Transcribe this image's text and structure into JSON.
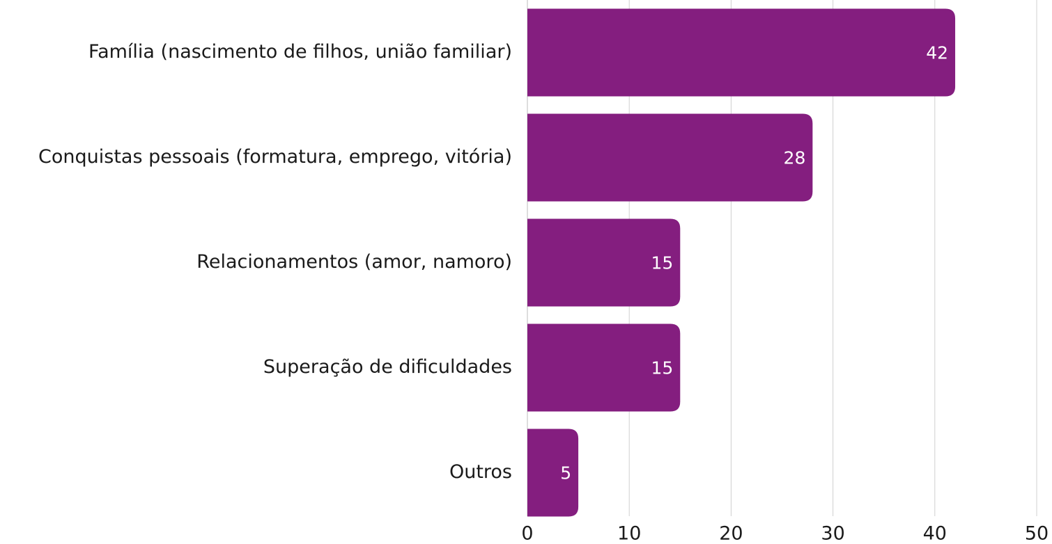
{
  "chart_data": {
    "type": "bar",
    "orientation": "horizontal",
    "categories": [
      "Família (nascimento de filhos, união familiar)",
      "Conquistas pessoais (formatura, emprego, vitória)",
      "Relacionamentos (amor, namoro)",
      "Superação de dificuldades",
      "Outros"
    ],
    "values": [
      42,
      28,
      15,
      15,
      5
    ],
    "color": "#841e7f",
    "xlim": [
      0,
      50
    ],
    "xticks": [
      0,
      10,
      20,
      30,
      40,
      50
    ],
    "grid": true
  }
}
